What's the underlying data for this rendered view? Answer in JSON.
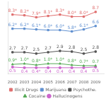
{
  "chart_data": {
    "type": "line",
    "x": [
      2002,
      2003,
      2004,
      2005,
      2006,
      2007,
      2008,
      2009
    ],
    "series": [
      {
        "name": "Illicit Drugs",
        "color": "#e07070",
        "marker": "square",
        "values": [
          8.3,
          8.2,
          7.9,
          8.1,
          8.3,
          8.0,
          8.0,
          8.7
        ],
        "value_labels": [
          "8.3*",
          "8.2*",
          "7.9*",
          "8.1*",
          "8.3*",
          "8.0*",
          "8.0*",
          "8.7"
        ]
      },
      {
        "name": "Marijuana",
        "color": "#6090d0",
        "marker": "square",
        "values": [
          6.2,
          6.2,
          6.1,
          6.0,
          6.0,
          5.8,
          6.1,
          6.6
        ],
        "value_labels": [
          "6.2*",
          "6.2*",
          "6.1*",
          "6.0*",
          "6.0*",
          "5.8*",
          "6.1*",
          "6.6"
        ]
      },
      {
        "name": "Psychothe.",
        "color": "#555555",
        "marker": "square",
        "values": [
          2.7,
          2.7,
          2.5,
          2.7,
          2.9,
          2.8,
          2.5,
          2.8
        ],
        "value_labels": [
          "2.7",
          "2.7",
          "2.5",
          "2.7",
          "2.9",
          "2.8",
          "2.5",
          "2.8"
        ]
      },
      {
        "name": "Cocaine",
        "color": "#55aa55",
        "marker": "triangle",
        "values": [
          0.9,
          1.0,
          0.8,
          1.0,
          1.0,
          0.8,
          0.7,
          0.7
        ],
        "value_labels": [
          "0.9*",
          "1.0*",
          "0.8*",
          "1.0*",
          "1.0*",
          "0.8*",
          "0.7*",
          "0.7"
        ]
      },
      {
        "name": "Hallucinogens",
        "color": "#cc66cc",
        "marker": "circle",
        "values": [
          0.5,
          0.4,
          0.4,
          0.4,
          0.4,
          0.4,
          0.4,
          0.5
        ],
        "value_labels": [
          "0.5",
          "0.4",
          "0.4*",
          "0.4",
          "0.4",
          "0.4",
          "0.4",
          "0.5"
        ]
      }
    ],
    "xlim": [
      2001.6,
      2009.7
    ],
    "xticks": [
      2002,
      2003,
      2004,
      2005,
      2006,
      2007,
      2008,
      2009
    ],
    "ylim": [
      -0.5,
      10.2
    ],
    "grid": false,
    "legend": "bottom",
    "data_labels": true,
    "tick_labels": "x"
  }
}
